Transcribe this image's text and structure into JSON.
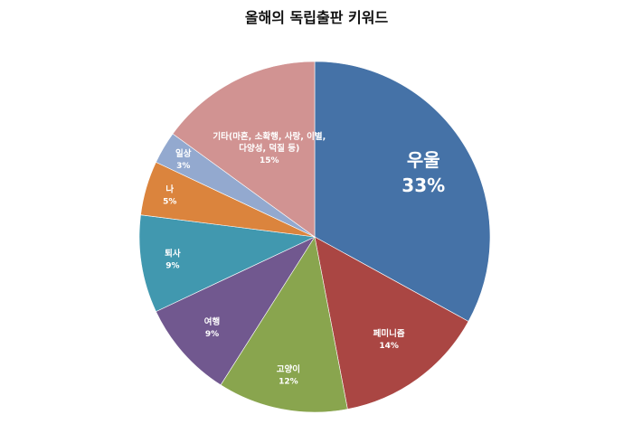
{
  "chart_data": {
    "type": "pie",
    "title": "올해의 독립출판 키워드",
    "slices": [
      {
        "label_lines": [
          "우울"
        ],
        "value": 33,
        "value_label": "33%",
        "color": "#4572a7",
        "big": true
      },
      {
        "label_lines": [
          "페미니즘"
        ],
        "value": 14,
        "value_label": "14%",
        "color": "#aa4643"
      },
      {
        "label_lines": [
          "고양이"
        ],
        "value": 12,
        "value_label": "12%",
        "color": "#89a54e"
      },
      {
        "label_lines": [
          "여행"
        ],
        "value": 9,
        "value_label": "9%",
        "color": "#71588f"
      },
      {
        "label_lines": [
          "퇴사"
        ],
        "value": 9,
        "value_label": "9%",
        "color": "#4198af"
      },
      {
        "label_lines": [
          "나"
        ],
        "value": 5,
        "value_label": "5%",
        "color": "#db843d"
      },
      {
        "label_lines": [
          "일상"
        ],
        "value": 3,
        "value_label": "3%",
        "color": "#93a9cf"
      },
      {
        "label_lines": [
          "기타(마흔, 소확행, 사랑, 이별,",
          "다양성, 덕질 등)"
        ],
        "value": 15,
        "value_label": "15%",
        "color": "#d19392"
      }
    ]
  }
}
